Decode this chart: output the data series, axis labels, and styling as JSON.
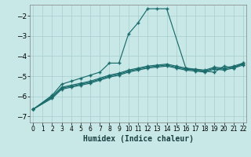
{
  "xlabel": "Humidex (Indice chaleur)",
  "background_color": "#c8e8e8",
  "grid_color": "#a8cccc",
  "line_color": "#1a6b6b",
  "xlim": [
    -0.3,
    22.3
  ],
  "ylim": [
    -7.3,
    -1.45
  ],
  "yticks": [
    -7,
    -6,
    -5,
    -4,
    -3,
    -2
  ],
  "xticks": [
    0,
    1,
    2,
    3,
    4,
    5,
    6,
    7,
    8,
    9,
    10,
    11,
    12,
    13,
    14,
    15,
    16,
    17,
    18,
    19,
    20,
    21,
    22
  ],
  "series": [
    {
      "x": [
        0,
        2,
        3,
        4,
        5,
        6,
        7,
        8,
        9,
        10,
        11,
        12,
        13,
        14,
        16,
        17,
        18,
        19,
        20,
        21,
        22
      ],
      "y": [
        -6.65,
        -5.95,
        -5.4,
        -5.25,
        -5.1,
        -4.95,
        -4.8,
        -4.35,
        -4.35,
        -2.9,
        -2.35,
        -1.65,
        -1.65,
        -1.65,
        -4.6,
        -4.7,
        -4.75,
        -4.8,
        -4.5,
        -4.6,
        -4.35
      ]
    },
    {
      "x": [
        0,
        2,
        3,
        4,
        5,
        6,
        7,
        8,
        9,
        10,
        11,
        12,
        13,
        14,
        15,
        16,
        17,
        18,
        19,
        20,
        21,
        22
      ],
      "y": [
        -6.65,
        -6.0,
        -5.55,
        -5.45,
        -5.35,
        -5.25,
        -5.1,
        -4.95,
        -4.85,
        -4.7,
        -4.6,
        -4.5,
        -4.45,
        -4.4,
        -4.5,
        -4.6,
        -4.65,
        -4.7,
        -4.55,
        -4.6,
        -4.5,
        -4.35
      ]
    },
    {
      "x": [
        0,
        2,
        3,
        4,
        5,
        6,
        7,
        8,
        9,
        10,
        11,
        12,
        13,
        14,
        15,
        16,
        17,
        18,
        19,
        20,
        21,
        22
      ],
      "y": [
        -6.65,
        -6.05,
        -5.6,
        -5.5,
        -5.4,
        -5.3,
        -5.15,
        -5.0,
        -4.9,
        -4.75,
        -4.65,
        -4.55,
        -4.5,
        -4.45,
        -4.55,
        -4.65,
        -4.7,
        -4.75,
        -4.6,
        -4.65,
        -4.55,
        -4.4
      ]
    },
    {
      "x": [
        0,
        2,
        3,
        4,
        5,
        6,
        7,
        8,
        9,
        10,
        11,
        12,
        13,
        14,
        15,
        16,
        17,
        18,
        19,
        20,
        21,
        22
      ],
      "y": [
        -6.65,
        -6.1,
        -5.65,
        -5.55,
        -5.45,
        -5.35,
        -5.2,
        -5.05,
        -4.95,
        -4.8,
        -4.7,
        -4.6,
        -4.55,
        -4.5,
        -4.6,
        -4.7,
        -4.75,
        -4.8,
        -4.65,
        -4.7,
        -4.6,
        -4.45
      ]
    }
  ]
}
